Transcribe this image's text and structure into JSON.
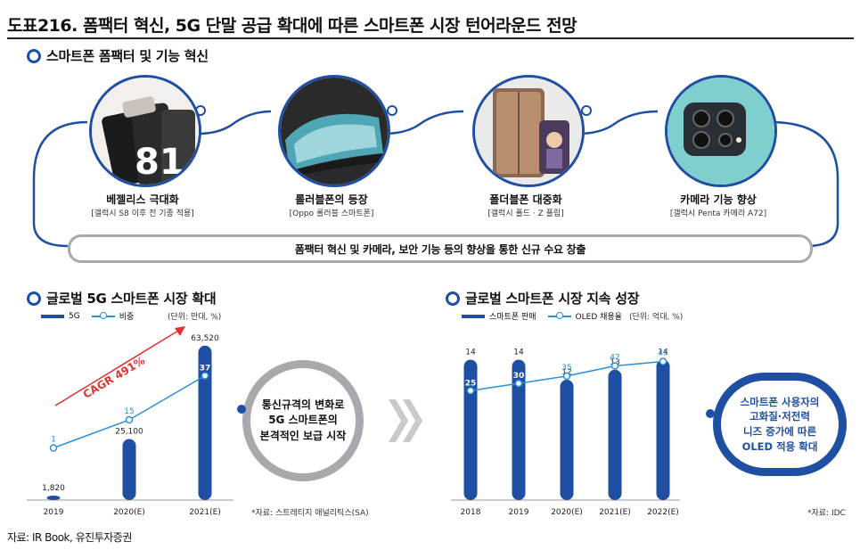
{
  "title": "도표216.   폼팩터 혁신, 5G 단말 공급 확대에 따른 스마트폰 시장 턴어라운드 전망",
  "innovation": {
    "section_title": "스마트폰 폼팩터 및 기능 혁신",
    "items": [
      {
        "label": "베젤리스 극대화",
        "sub": "[갤럭시 S8 이후 전 기종 적용]"
      },
      {
        "label": "롤러블폰의 등장",
        "sub": "[Oppo 롤러블 스마트폰]"
      },
      {
        "label": "폴더블폰 대중화",
        "sub": "[갤럭시 폴드 · Z 플립]"
      },
      {
        "label": "카메라 기능 향상",
        "sub": "[갤럭시 Penta 카메라 A72]"
      }
    ],
    "banner": "폼팩터 혁신 및 카메라, 보안 기능 등의 향상을 통한 신규 수요 창출"
  },
  "left": {
    "section_title": "글로벌 5G 스마트폰 시장 확대",
    "legend_bar": "5G",
    "legend_line": "비중",
    "unit": "(단위: 만대, %)",
    "source": "*자료: 스트레티지 애널리틱스(SA)",
    "cagr": "CAGR 491%",
    "bubble": "통신규격의 변화로\n5G 스마트폰의\n본격적인 보급 시작"
  },
  "right": {
    "section_title": "글로벌 스마트폰 시장 지속 성장",
    "legend_bar": "스마트폰 판매",
    "legend_line": "OLED 채용율",
    "unit": "(단위: 억대, %)",
    "source": "*자료: IDC",
    "bubble": "스마트폰 사용자의\n고화질·저전력\n니즈 증가에 따른\nOLED 적용 확대"
  },
  "footer": "자료: IR Book, 유진투자증권",
  "chart_data": [
    {
      "type": "bar",
      "title": "글로벌 5G 스마트폰 시장 확대",
      "categories": [
        "2019",
        "2020(E)",
        "2021(E)"
      ],
      "series": [
        {
          "name": "5G",
          "type": "bar",
          "values": [
            1820,
            25100,
            63520
          ],
          "labels": [
            "1,820",
            "25,100",
            "63,520"
          ]
        },
        {
          "name": "비중",
          "type": "line",
          "values": [
            1,
            15,
            37
          ]
        }
      ],
      "bar_ylim": [
        0,
        66000
      ],
      "line_ylim": [
        -25,
        55
      ],
      "colors": {
        "bar": "#1f4fa3",
        "line": "#2d8fd8"
      }
    },
    {
      "type": "bar",
      "title": "글로벌 스마트폰 시장 지속 성장",
      "categories": [
        "2018",
        "2019",
        "2020(E)",
        "2021(E)",
        "2022(E)"
      ],
      "series": [
        {
          "name": "스마트폰 판매",
          "type": "bar",
          "values": [
            14,
            14,
            12,
            13,
            14
          ]
        },
        {
          "name": "OLED 채용율",
          "type": "line",
          "values": [
            25,
            30,
            35,
            42,
            45
          ]
        }
      ],
      "bar_ylim": [
        0,
        16
      ],
      "line_ylim": [
        -50,
        60
      ],
      "colors": {
        "bar": "#1f4fa3",
        "line": "#2d8fd8"
      }
    }
  ]
}
